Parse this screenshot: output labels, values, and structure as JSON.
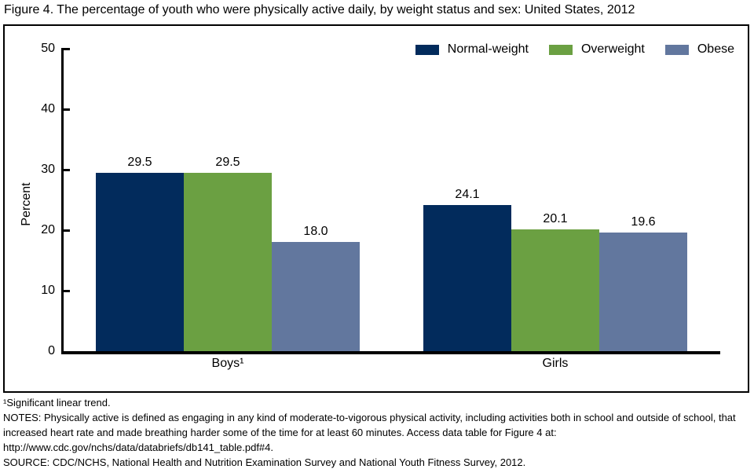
{
  "chart_data": {
    "type": "bar",
    "title": "Figure 4. The percentage of youth who were physically active daily, by weight status and sex: United States, 2012",
    "categories": [
      "Boys¹",
      "Girls"
    ],
    "series": [
      {
        "name": "Normal-weight",
        "color": "#022b5c",
        "values": [
          29.5,
          24.1
        ]
      },
      {
        "name": "Overweight",
        "color": "#6ba042",
        "values": [
          29.5,
          20.1
        ]
      },
      {
        "name": "Obese",
        "color": "#62779e",
        "values": [
          18.0,
          19.6
        ]
      }
    ],
    "xlabel": "",
    "ylabel": "Percent",
    "ylim": [
      0,
      50
    ],
    "yticks": [
      0,
      10,
      20,
      30,
      40,
      50
    ],
    "legend_position": "top-right",
    "grid": false,
    "value_label_format": "one-decimal",
    "axis_color": "#000000",
    "background_color": "#ffffff"
  },
  "footnotes": {
    "significance": "¹Significant linear trend.",
    "notes_line1": "NOTES: Physically active is defined as engaging in any kind of moderate-to-vigorous physical activity, including activities both in school and outside of school, that",
    "notes_line2": "increased heart rate and made breathing harder some of the time for at least 60 minutes. Access data table for Figure 4 at:",
    "url": "http://www.cdc.gov/nchs/data/databriefs/db141_table.pdf#4.",
    "source": "SOURCE: CDC/NCHS, National Health and Nutrition Examination Survey and National Youth Fitness Survey, 2012."
  }
}
